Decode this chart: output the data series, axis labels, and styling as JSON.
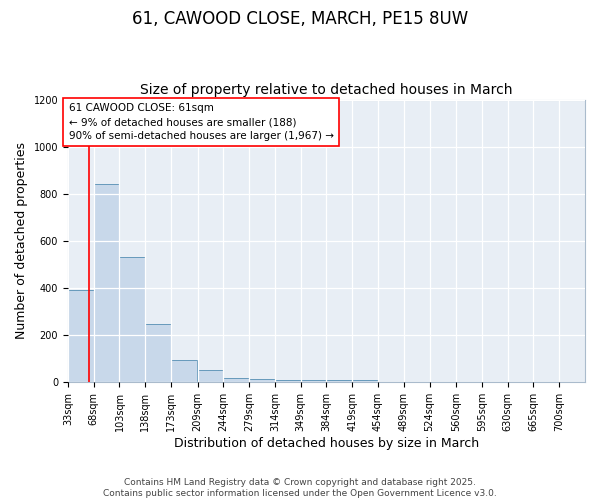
{
  "title": "61, CAWOOD CLOSE, MARCH, PE15 8UW",
  "subtitle": "Size of property relative to detached houses in March",
  "xlabel": "Distribution of detached houses by size in March",
  "ylabel": "Number of detached properties",
  "bar_color": "#c8d8ea",
  "bar_edge_color": "#6699bb",
  "bins": [
    33,
    68,
    103,
    138,
    173,
    209,
    244,
    279,
    314,
    349,
    384,
    419,
    454,
    489,
    524,
    560,
    595,
    630,
    665,
    700,
    735
  ],
  "counts": [
    390,
    840,
    530,
    248,
    95,
    52,
    20,
    14,
    10,
    10,
    10,
    10,
    0,
    0,
    0,
    0,
    0,
    0,
    0,
    0
  ],
  "ylim": [
    0,
    1200
  ],
  "yticks": [
    0,
    200,
    400,
    600,
    800,
    1000,
    1200
  ],
  "red_line_x": 61,
  "annotation_line1": "61 CAWOOD CLOSE: 61sqm",
  "annotation_line2": "← 9% of detached houses are smaller (188)",
  "annotation_line3": "90% of semi-detached houses are larger (1,967) →",
  "footer_text": "Contains HM Land Registry data © Crown copyright and database right 2025.\nContains public sector information licensed under the Open Government Licence v3.0.",
  "bg_color": "#ffffff",
  "plot_bg_color": "#e8eef5",
  "grid_color": "#ffffff",
  "title_fontsize": 12,
  "subtitle_fontsize": 10,
  "axis_label_fontsize": 9,
  "tick_fontsize": 7,
  "annotation_fontsize": 7.5,
  "footer_fontsize": 6.5
}
